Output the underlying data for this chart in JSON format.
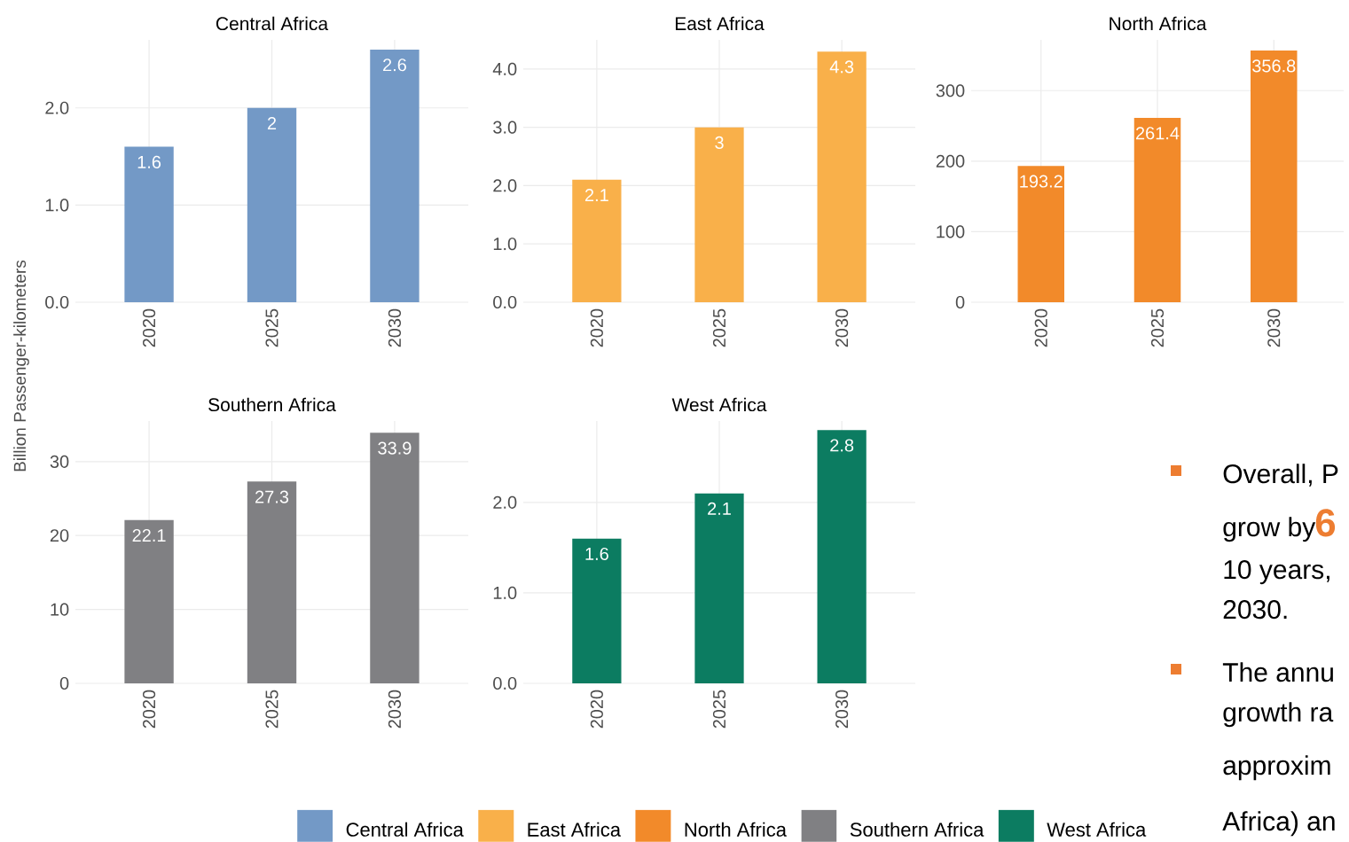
{
  "chart_data": [
    {
      "type": "bar",
      "title": "Central Africa",
      "ylabel": "Billion Passenger-kilometers",
      "categories": [
        "2020",
        "2025",
        "2030"
      ],
      "series": [
        {
          "name": "Central Africa",
          "color": "#7399c6",
          "values": [
            1.6,
            2,
            2.6
          ]
        }
      ],
      "ylim": [
        0,
        2.7
      ],
      "yticks": [
        {
          "value": 0,
          "label": "0.0"
        },
        {
          "value": 1,
          "label": "1.0"
        },
        {
          "value": 2,
          "label": "2.0"
        }
      ],
      "data_labels": true,
      "grid": true,
      "legend": "bottom"
    },
    {
      "type": "bar",
      "title": "East Africa",
      "categories": [
        "2020",
        "2025",
        "2030"
      ],
      "series": [
        {
          "name": "East Africa",
          "color": "#f9b04a",
          "values": [
            2.1,
            3,
            4.3
          ]
        }
      ],
      "ylim": [
        0,
        4.5
      ],
      "yticks": [
        {
          "value": 0,
          "label": "0.0"
        },
        {
          "value": 1,
          "label": "1.0"
        },
        {
          "value": 2,
          "label": "2.0"
        },
        {
          "value": 3,
          "label": "3.0"
        },
        {
          "value": 4,
          "label": "4.0"
        }
      ],
      "data_labels": true,
      "grid": true,
      "legend": "bottom"
    },
    {
      "type": "bar",
      "title": "North Africa",
      "categories": [
        "2020",
        "2025",
        "2030"
      ],
      "series": [
        {
          "name": "North Africa",
          "color": "#f28a2a",
          "values": [
            193.2,
            261.4,
            356.8
          ]
        }
      ],
      "ylim": [
        0,
        372
      ],
      "yticks": [
        0,
        100,
        200,
        300
      ],
      "data_labels": true,
      "grid": true,
      "legend": "bottom"
    },
    {
      "type": "bar",
      "title": "Southern Africa",
      "categories": [
        "2020",
        "2025",
        "2030"
      ],
      "series": [
        {
          "name": "Southern Africa",
          "color": "#808083",
          "values": [
            22.1,
            27.3,
            33.9
          ]
        }
      ],
      "ylim": [
        0,
        35.5
      ],
      "yticks": [
        0,
        10,
        20,
        30
      ],
      "data_labels": true,
      "grid": true,
      "legend": "bottom"
    },
    {
      "type": "bar",
      "title": "West Africa",
      "categories": [
        "2020",
        "2025",
        "2030"
      ],
      "series": [
        {
          "name": "West Africa",
          "color": "#0c7c61",
          "values": [
            1.6,
            2.1,
            2.8
          ]
        }
      ],
      "ylim": [
        0,
        2.9
      ],
      "yticks": [
        {
          "value": 0,
          "label": "0.0"
        },
        {
          "value": 1,
          "label": "1.0"
        },
        {
          "value": 2,
          "label": "2.0"
        }
      ],
      "data_labels": true,
      "grid": true,
      "legend": "bottom"
    },
    {
      "type": "other",
      "annotations": [
        "Overall, P",
        "grow by",
        "6",
        "10 years,",
        "2030.",
        "The annu",
        "growth ra",
        "approxim",
        "Africa) an"
      ]
    }
  ]
}
